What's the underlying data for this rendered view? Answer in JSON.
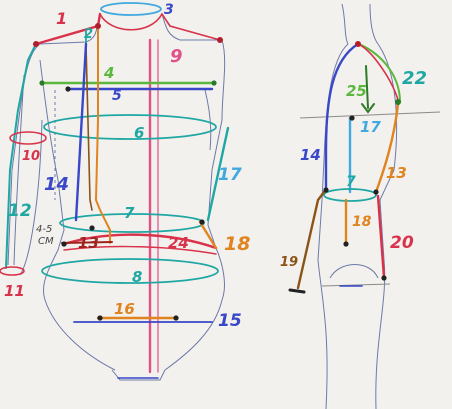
{
  "colors": {
    "paper": "#f3f1ee",
    "pencil": "#6d7aa8",
    "red": "#d8334a",
    "pink": "#e2508a",
    "green": "#5bb83c",
    "blue": "#3848c8",
    "teal": "#1fa7a3",
    "cyan": "#41a9e0",
    "orange": "#e0841f",
    "brown": "#8a5318",
    "darkred": "#a0231e",
    "black": "#222222"
  },
  "front_figure": {
    "labels": {
      "n1": "1",
      "n2": "2",
      "n3": "3",
      "n4": "4",
      "n5": "5",
      "n6": "6",
      "n7": "7",
      "n8": "8",
      "n9": "9",
      "n10": "10",
      "n11": "11",
      "n12": "12",
      "n13": "13",
      "n14": "14",
      "n15": "15",
      "n16": "16",
      "n17": "17",
      "n18": "18",
      "n24": "24"
    },
    "note": "4-5",
    "note_unit": "CM"
  },
  "side_figure": {
    "labels": {
      "n7": "7",
      "n13": "13",
      "n14": "14",
      "n17": "17",
      "n18": "18",
      "n19": "19",
      "n20": "20",
      "n22": "22",
      "n25": "25"
    }
  }
}
